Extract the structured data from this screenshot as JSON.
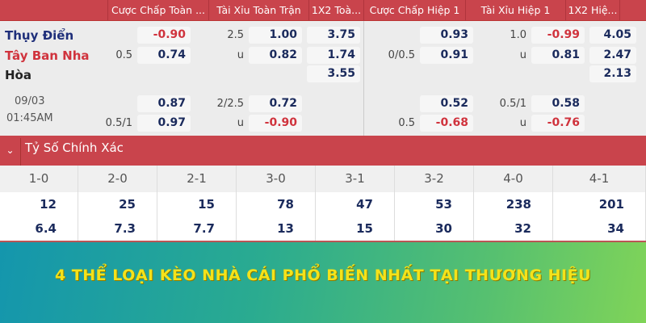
{
  "header": {
    "columns": [
      "Cược Chấp Toàn ...",
      "Tài Xỉu Toàn Trận",
      "1X2 Toà...",
      "Cược Chấp Hiệp 1",
      "Tài Xỉu Hiệp 1",
      "1X2 Hiệ..."
    ]
  },
  "match": {
    "home": "Thụy Điển",
    "away": "Tây Ban Nha",
    "draw": "Hòa",
    "date": "09/03",
    "time": "01:45AM",
    "main": {
      "ah_line": "0.5",
      "ah_home": "-0.90",
      "ah_away": "0.74",
      "ou_line": "2.5",
      "ou_over": "1.00",
      "ou_u": "u",
      "ou_under": "0.82",
      "x12_home": "3.75",
      "x12_away": "1.74",
      "x12_draw": "3.55",
      "h1_ah_line": "0/0.5",
      "h1_ah_home": "0.93",
      "h1_ah_away": "0.91",
      "h1_ou_line": "1.0",
      "h1_ou_over": "-0.99",
      "h1_ou_u": "u",
      "h1_ou_under": "0.81",
      "h1_x12_home": "4.05",
      "h1_x12_away": "2.47",
      "h1_x12_draw": "2.13"
    },
    "alt": {
      "ah_line": "0.5/1",
      "ah_home": "0.87",
      "ah_away": "0.97",
      "ou_line": "2/2.5",
      "ou_over": "0.72",
      "ou_u": "u",
      "ou_under": "-0.90",
      "h1_ah_line": "0.5",
      "h1_ah_home": "0.52",
      "h1_ah_away": "-0.68",
      "h1_ou_line": "0.5/1",
      "h1_ou_over": "0.58",
      "h1_ou_u": "u",
      "h1_ou_under": "-0.76"
    }
  },
  "correct_score": {
    "title": "Tỷ Số Chính Xác",
    "scores": [
      "1-0",
      "2-0",
      "2-1",
      "3-0",
      "3-1",
      "3-2",
      "4-0",
      "4-1"
    ],
    "row1": [
      "12",
      "25",
      "15",
      "78",
      "47",
      "53",
      "238",
      "201"
    ],
    "row2": [
      "6.4",
      "7.3",
      "7.7",
      "13",
      "15",
      "30",
      "32",
      "34"
    ]
  },
  "banner": {
    "text": "4 THỂ LOẠI KÈO NHÀ CÁI PHỔ BIẾN NHẤT TẠI THƯƠNG HIỆU"
  },
  "colors": {
    "accent": "#c9444c",
    "odds": "#1a2a5c",
    "negative": "#d0333d",
    "banner_text": "#f4e21a"
  }
}
